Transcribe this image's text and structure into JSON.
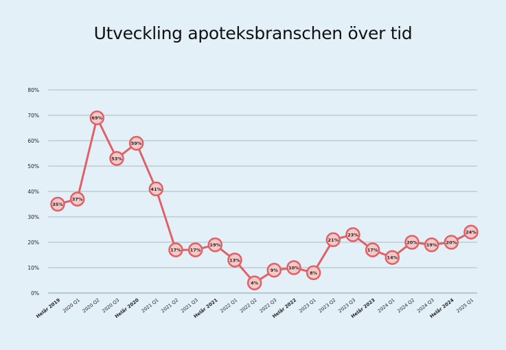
{
  "chart_data": {
    "type": "line",
    "title": "Utveckling apoteksbranschen över tid",
    "xlabel": "",
    "ylabel": "",
    "ylim": [
      0,
      80
    ],
    "yticks": [
      "0%",
      "10%",
      "20%",
      "30%",
      "40%",
      "50%",
      "60%",
      "70%",
      "80%"
    ],
    "grid": true,
    "legend": "none",
    "line_color": "#e06066",
    "marker_fill": "#f6c9c8",
    "background": "#e3f0f8",
    "categories": [
      "Helår 2019",
      "2020 Q1",
      "2020 Q2",
      "2020 Q3",
      "Helår 2020",
      "2021 Q1",
      "2021 Q2",
      "2021 Q3",
      "Helår 2021",
      "2022 Q1",
      "2022 Q2",
      "2022 Q3",
      "Helår 2022",
      "2023 Q1",
      "2023 Q2",
      "2023 Q3",
      "Helår 2023",
      "2024 Q1",
      "2024 Q2",
      "2024 Q3",
      "Helår 2024",
      "2025 Q1"
    ],
    "bold_categories": [
      "Helår 2019",
      "Helår 2020",
      "Helår 2021",
      "Helår 2022",
      "Helår 2023",
      "Helår 2024"
    ],
    "values": [
      35,
      37,
      69,
      53,
      59,
      41,
      17,
      17,
      19,
      13,
      4,
      9,
      10,
      8,
      21,
      23,
      17,
      14,
      20,
      19,
      20,
      24
    ],
    "data_labels": [
      "35%",
      "37%",
      "69%",
      "53%",
      "59%",
      "41%",
      "17%",
      "17%",
      "19%",
      "13%",
      "4%",
      "9%",
      "10%",
      "8%",
      "21%",
      "23%",
      "17%",
      "14%",
      "20%",
      "19%",
      "20%",
      "24%"
    ]
  }
}
